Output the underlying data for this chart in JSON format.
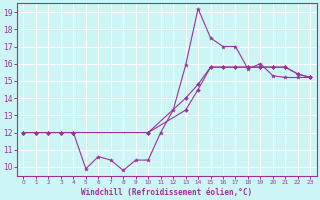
{
  "xlabel": "Windchill (Refroidissement éolien,°C)",
  "bg_color": "#cef5f5",
  "grid_color": "#ffffff",
  "line_color": "#993399",
  "xlim": [
    -0.5,
    23.5
  ],
  "ylim": [
    9.5,
    19.5
  ],
  "yticks": [
    10,
    11,
    12,
    13,
    14,
    15,
    16,
    17,
    18,
    19
  ],
  "xticks": [
    0,
    1,
    2,
    3,
    4,
    5,
    6,
    7,
    8,
    9,
    10,
    11,
    12,
    13,
    14,
    15,
    16,
    17,
    18,
    19,
    20,
    21,
    22,
    23
  ],
  "s1_x": [
    0,
    1,
    2,
    3,
    4,
    5,
    6,
    7,
    8,
    9,
    10,
    11,
    12,
    13,
    14,
    15,
    16,
    17,
    18,
    19,
    20,
    21,
    22,
    23
  ],
  "s1_y": [
    12,
    12,
    12,
    12,
    12,
    9.9,
    10.6,
    10.4,
    9.8,
    10.4,
    10.4,
    12,
    13.3,
    15.9,
    19.2,
    17.5,
    17.0,
    17.0,
    15.7,
    16.0,
    15.3,
    15.2,
    15.2,
    15.2
  ],
  "s2_x": [
    0,
    1,
    2,
    3,
    4,
    10,
    13,
    14,
    15,
    16,
    17,
    18,
    19,
    20,
    21,
    22,
    23
  ],
  "s2_y": [
    12,
    12,
    12,
    12,
    12,
    12,
    14.0,
    14.8,
    15.8,
    15.8,
    15.8,
    15.8,
    15.8,
    15.8,
    15.8,
    15.4,
    15.2
  ],
  "s3_x": [
    0,
    1,
    2,
    3,
    4,
    10,
    13,
    14,
    15,
    16,
    17,
    18,
    19,
    20,
    21,
    22,
    23
  ],
  "s3_y": [
    12,
    12,
    12,
    12,
    12,
    12,
    13.3,
    14.5,
    15.8,
    15.8,
    15.8,
    15.8,
    15.8,
    15.8,
    15.8,
    15.4,
    15.2
  ]
}
